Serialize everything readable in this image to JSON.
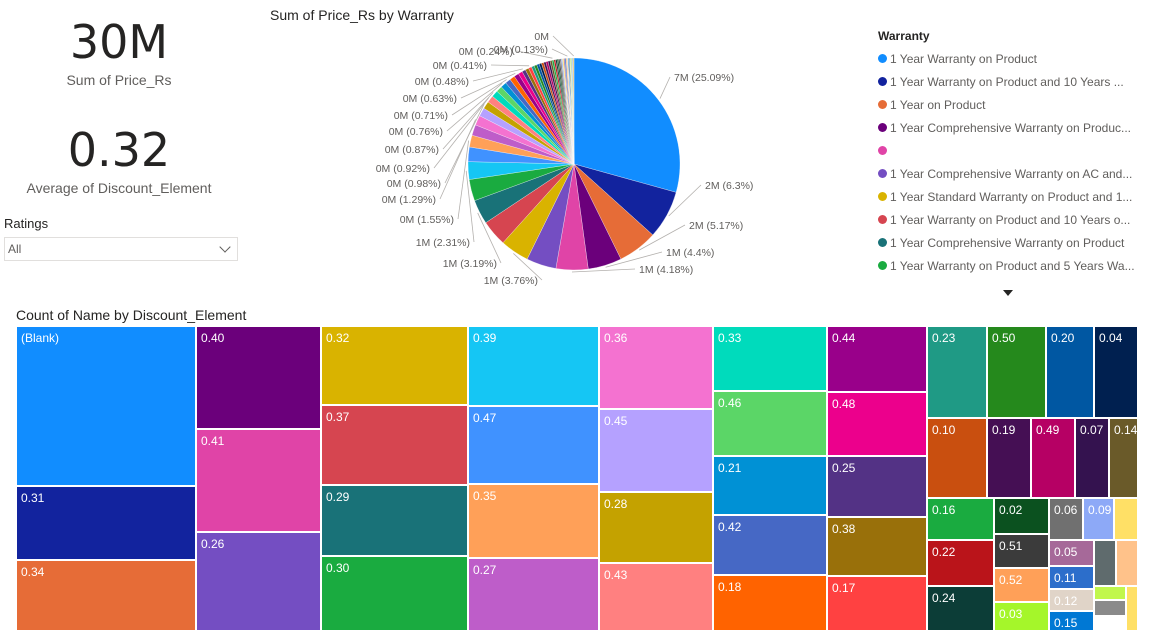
{
  "kpis": [
    {
      "value": "30M",
      "label": "Sum of Price_Rs"
    },
    {
      "value": "0.32",
      "label": "Average of Discount_Element"
    }
  ],
  "slicer": {
    "title": "Ratings",
    "value": "All",
    "icon": "chevron-down-icon"
  },
  "pie_title": "Sum of Price_Rs by Warranty",
  "treemap_title": "Count of Name by Discount_Element",
  "legend": {
    "title": "Warranty",
    "items": [
      {
        "label": "1 Year Warranty on Product",
        "color": "#118DFF"
      },
      {
        "label": "1 Year Warranty on Product and 10 Years ...",
        "color": "#12239E"
      },
      {
        "label": "1 Year on Product",
        "color": "#E66C37"
      },
      {
        "label": "1 Year Comprehensive Warranty on Produc...",
        "color": "#6B007B"
      },
      {
        "label": "",
        "color": "#E044A7"
      },
      {
        "label": "1 Year Comprehensive Warranty on AC and...",
        "color": "#744EC2"
      },
      {
        "label": "1 Year Standard Warranty on Product and 1...",
        "color": "#D9B300"
      },
      {
        "label": "1 Year Warranty on Product and 10 Years o...",
        "color": "#D64550"
      },
      {
        "label": "1 Year Comprehensive Warranty on Product",
        "color": "#197278"
      },
      {
        "label": "1 Year Warranty on Product and 5 Years Wa...",
        "color": "#1AAB40"
      }
    ],
    "more_icon": "caret-down-icon"
  },
  "chart_data": [
    {
      "type": "pie",
      "title": "Sum of Price_Rs by Warranty",
      "legend_title": "Warranty",
      "legend_position": "right",
      "slices": [
        {
          "label": "7M (25.09%)",
          "percent": 25.09,
          "color": "#118DFF"
        },
        {
          "label": "2M (6.3%)",
          "percent": 6.3,
          "color": "#12239E"
        },
        {
          "label": "2M (5.17%)",
          "percent": 5.17,
          "color": "#E66C37"
        },
        {
          "label": "1M (4.4%)",
          "percent": 4.4,
          "color": "#6B007B"
        },
        {
          "label": "1M (4.18%)",
          "percent": 4.18,
          "color": "#E044A7"
        },
        {
          "label": "",
          "percent": 3.9,
          "color": "#744EC2"
        },
        {
          "label": "1M (3.76%)",
          "percent": 3.76,
          "color": "#D9B300"
        },
        {
          "label": "",
          "percent": 3.4,
          "color": "#D64550"
        },
        {
          "label": "1M (3.19%)",
          "percent": 3.19,
          "color": "#197278"
        },
        {
          "label": "",
          "percent": 2.8,
          "color": "#1AAB40"
        },
        {
          "label": "1M (2.31%)",
          "percent": 2.31,
          "color": "#15C6F4"
        },
        {
          "label": "",
          "percent": 1.9,
          "color": "#4092FF"
        },
        {
          "label": "0M (1.55%)",
          "percent": 1.55,
          "color": "#FFA058"
        },
        {
          "label": "",
          "percent": 1.4,
          "color": "#BE5DC9"
        },
        {
          "label": "0M (1.29%)",
          "percent": 1.29,
          "color": "#F472D0"
        },
        {
          "label": "",
          "percent": 1.1,
          "color": "#B5A1FF"
        },
        {
          "label": "0M (0.98%)",
          "percent": 0.98,
          "color": "#C4A200"
        },
        {
          "label": "0M (0.92%)",
          "percent": 0.92,
          "color": "#FF8080"
        },
        {
          "label": "0M (0.87%)",
          "percent": 0.87,
          "color": "#00DBBC"
        },
        {
          "label": "",
          "percent": 0.8,
          "color": "#5BD667"
        },
        {
          "label": "0M (0.76%)",
          "percent": 0.76,
          "color": "#0091D5"
        },
        {
          "label": "0M (0.71%)",
          "percent": 0.71,
          "color": "#4668C5"
        },
        {
          "label": "",
          "percent": 0.67,
          "color": "#FF6300"
        },
        {
          "label": "0M (0.63%)",
          "percent": 0.63,
          "color": "#99008A"
        },
        {
          "label": "",
          "percent": 0.55,
          "color": "#EC008C"
        },
        {
          "label": "0M (0.48%)",
          "percent": 0.48,
          "color": "#533285"
        },
        {
          "label": "",
          "percent": 0.45,
          "color": "#99700A"
        },
        {
          "label": "0M (0.41%)",
          "percent": 0.41,
          "color": "#FF4141"
        },
        {
          "label": "",
          "percent": 0.38,
          "color": "#1F9A85"
        },
        {
          "label": "",
          "percent": 0.35,
          "color": "#25891C"
        },
        {
          "label": "",
          "percent": 0.33,
          "color": "#0057A2"
        },
        {
          "label": "",
          "percent": 0.31,
          "color": "#002050"
        },
        {
          "label": "",
          "percent": 0.3,
          "color": "#C94F0F"
        },
        {
          "label": "",
          "percent": 0.29,
          "color": "#450F54"
        },
        {
          "label": "",
          "percent": 0.28,
          "color": "#B60064"
        },
        {
          "label": "",
          "percent": 0.27,
          "color": "#34124F"
        },
        {
          "label": "",
          "percent": 0.26,
          "color": "#6A5A29"
        },
        {
          "label": "0M (0.24%)",
          "percent": 0.24,
          "color": "#1AAB40"
        },
        {
          "label": "",
          "percent": 0.22,
          "color": "#BA141A"
        },
        {
          "label": "",
          "percent": 0.2,
          "color": "#0C3D37"
        },
        {
          "label": "",
          "percent": 0.19,
          "color": "#0B511F"
        },
        {
          "label": "",
          "percent": 0.18,
          "color": "#3B3B3B"
        },
        {
          "label": "",
          "percent": 0.17,
          "color": "#707070"
        },
        {
          "label": "",
          "percent": 0.16,
          "color": "#8DA9F7"
        },
        {
          "label": "",
          "percent": 0.16,
          "color": "#FFE066"
        },
        {
          "label": "",
          "percent": 0.15,
          "color": "#A66999"
        },
        {
          "label": "",
          "percent": 0.15,
          "color": "#2C6ECB"
        },
        {
          "label": "",
          "percent": 0.14,
          "color": "#FFB573"
        },
        {
          "label": "0M (0.13%)",
          "percent": 0.13,
          "color": "#E0D4C8"
        },
        {
          "label": "",
          "percent": 0.12,
          "color": "#0078D4"
        },
        {
          "label": "",
          "percent": 0.11,
          "color": "#4D4D4D"
        },
        {
          "label": "",
          "percent": 0.1,
          "color": "#C1F74C"
        },
        {
          "label": "",
          "percent": 0.1,
          "color": "#A0A0A0"
        },
        {
          "label": "",
          "percent": 0.09,
          "color": "#85DB5A"
        },
        {
          "label": "",
          "percent": 0.09,
          "color": "#118DFF"
        },
        {
          "label": "",
          "percent": 0.08,
          "color": "#E66C37"
        },
        {
          "label": "0M",
          "percent": 0.08,
          "color": "#D9B300"
        }
      ]
    },
    {
      "type": "treemap",
      "title": "Count of Name by Discount_Element",
      "tiles": [
        {
          "label": "(Blank)",
          "color": "#118DFF"
        },
        {
          "label": "0.31",
          "color": "#12239E"
        },
        {
          "label": "0.34",
          "color": "#E66C37"
        },
        {
          "label": "0.40",
          "color": "#6B007B"
        },
        {
          "label": "0.41",
          "color": "#E044A7"
        },
        {
          "label": "0.26",
          "color": "#744EC2"
        },
        {
          "label": "0.32",
          "color": "#D9B300"
        },
        {
          "label": "0.37",
          "color": "#D64550"
        },
        {
          "label": "0.29",
          "color": "#197278"
        },
        {
          "label": "0.30",
          "color": "#1AAB40"
        },
        {
          "label": "0.39",
          "color": "#15C6F4"
        },
        {
          "label": "0.47",
          "color": "#4092FF"
        },
        {
          "label": "0.35",
          "color": "#FFA058"
        },
        {
          "label": "0.27",
          "color": "#BE5DC9"
        },
        {
          "label": "0.36",
          "color": "#F472D0"
        },
        {
          "label": "0.45",
          "color": "#B5A1FF"
        },
        {
          "label": "0.28",
          "color": "#C4A200"
        },
        {
          "label": "0.43",
          "color": "#FF8080"
        },
        {
          "label": "0.33",
          "color": "#00DBBC"
        },
        {
          "label": "0.46",
          "color": "#5BD667"
        },
        {
          "label": "0.21",
          "color": "#0091D5"
        },
        {
          "label": "0.42",
          "color": "#4668C5"
        },
        {
          "label": "0.18",
          "color": "#FF6300"
        },
        {
          "label": "0.44",
          "color": "#99008A"
        },
        {
          "label": "0.48",
          "color": "#EC008C"
        },
        {
          "label": "0.25",
          "color": "#533285"
        },
        {
          "label": "0.38",
          "color": "#99700A"
        },
        {
          "label": "0.17",
          "color": "#FF4141"
        },
        {
          "label": "0.23",
          "color": "#1F9A85"
        },
        {
          "label": "0.50",
          "color": "#25891C"
        },
        {
          "label": "0.20",
          "color": "#0057A2"
        },
        {
          "label": "0.04",
          "color": "#002050"
        },
        {
          "label": "0.10",
          "color": "#C94F0F"
        },
        {
          "label": "0.19",
          "color": "#450F54"
        },
        {
          "label": "0.49",
          "color": "#B60064"
        },
        {
          "label": "0.07",
          "color": "#34124F"
        },
        {
          "label": "0.14",
          "color": "#6A5A29"
        },
        {
          "label": "0.16",
          "color": "#1AAB40"
        },
        {
          "label": "0.22",
          "color": "#BA141A"
        },
        {
          "label": "0.24",
          "color": "#0C3D37"
        },
        {
          "label": "0.02",
          "color": "#0B511F"
        },
        {
          "label": "0.51",
          "color": "#3B3B3B"
        },
        {
          "label": "0.52",
          "color": "#FFA058"
        },
        {
          "label": "0.03",
          "color": "#A5F62A"
        },
        {
          "label": "0.06",
          "color": "#707070"
        },
        {
          "label": "0.09",
          "color": "#8DA9F7"
        },
        {
          "label": "",
          "color": "#FFE066"
        },
        {
          "label": "0.05",
          "color": "#A66999"
        },
        {
          "label": "0.11",
          "color": "#2C6ECB"
        },
        {
          "label": "0.12",
          "color": "#E0D4C8"
        },
        {
          "label": "0.15",
          "color": "#0078D4"
        },
        {
          "label": "",
          "color": "#5F6B6D"
        },
        {
          "label": "",
          "color": "#FFC28A"
        },
        {
          "label": "",
          "color": "#C1F74C"
        },
        {
          "label": "",
          "color": "#8A8A8A"
        },
        {
          "label": "",
          "color": "#FFE066"
        }
      ]
    }
  ]
}
